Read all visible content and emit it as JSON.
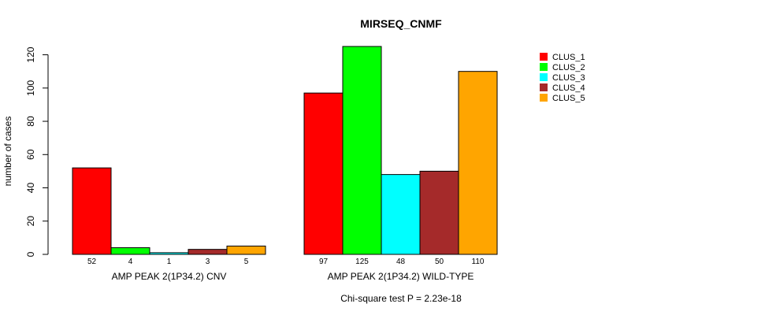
{
  "chart_data": {
    "type": "bar",
    "title": "MIRSEQ_CNMF",
    "ylabel": "number of cases",
    "ylim": [
      0,
      125
    ],
    "yticks": [
      0,
      20,
      40,
      60,
      80,
      100,
      120
    ],
    "groups": [
      {
        "label": "AMP PEAK  2(1P34.2) CNV",
        "values": [
          52,
          4,
          1,
          3,
          5
        ]
      },
      {
        "label": "AMP PEAK  2(1P34.2) WILD-TYPE",
        "values": [
          97,
          125,
          48,
          50,
          110
        ]
      }
    ],
    "series": [
      {
        "name": "CLUS_1",
        "color": "#ff0000"
      },
      {
        "name": "CLUS_2",
        "color": "#00ff00"
      },
      {
        "name": "CLUS_3",
        "color": "#00ffff"
      },
      {
        "name": "CLUS_4",
        "color": "#a52a2a"
      },
      {
        "name": "CLUS_5",
        "color": "#ffa500"
      }
    ],
    "footnote": "Chi-square test P = 2.23e-18",
    "legend_position": "top-right",
    "grid": false
  }
}
